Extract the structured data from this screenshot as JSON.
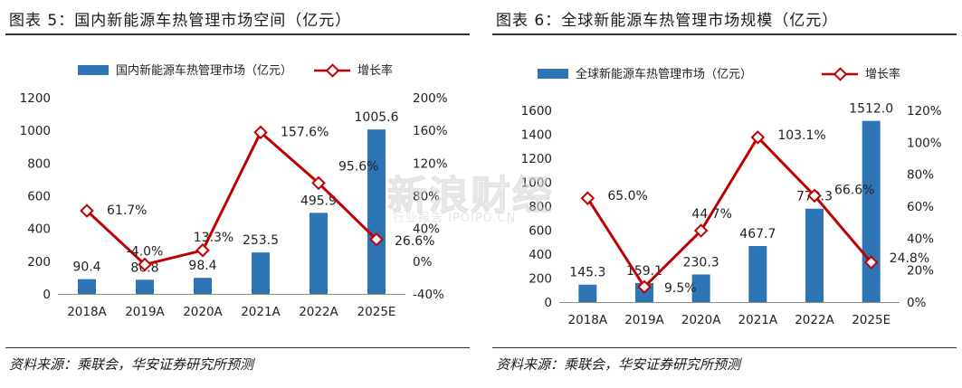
{
  "figures": [
    {
      "title": "图表 5：国内新能源车热管理市场空间（亿元）",
      "source": "资料来源：乘联会，华安证券研究所预测"
    },
    {
      "title": "图表 6：全球新能源车热管理市场规模（亿元）",
      "source": "资料来源：乘联会，华安证券研究所预测"
    }
  ],
  "watermark": {
    "text": "新浪财经",
    "subtext": "行业报告 IPOIPO.CN"
  },
  "colors": {
    "bar": "#2e75b6",
    "line": "#c00000",
    "marker_fill": "#ffffff",
    "axis": "#8c8c8c"
  },
  "chart_data": [
    {
      "type": "bar",
      "title": "",
      "categories": [
        "2018A",
        "2019A",
        "2020A",
        "2021A",
        "2022A",
        "2025E"
      ],
      "series": [
        {
          "name": "国内新能源车热管理市场（亿元）",
          "axis": "left",
          "type": "bar",
          "values": [
            90.4,
            86.8,
            98.4,
            253.5,
            495.9,
            1005.6
          ],
          "labels": [
            "90.4",
            "86.8",
            "98.4",
            "253.5",
            "495.9",
            "1005.6"
          ]
        },
        {
          "name": "增长率",
          "axis": "right",
          "type": "line",
          "values": [
            61.7,
            -4.0,
            13.3,
            157.6,
            95.6,
            26.6
          ],
          "labels": [
            "61.7%",
            "-4.0%",
            "13.3%",
            "157.6%",
            "95.6%",
            "26.6%"
          ]
        }
      ],
      "y_left": {
        "min": 0,
        "max": 1200,
        "ticks": [
          0,
          200,
          400,
          600,
          800,
          1000,
          1200
        ],
        "tick_labels": [
          "0",
          "200",
          "400",
          "600",
          "800",
          "1000",
          "1200"
        ]
      },
      "y_right": {
        "min": -40,
        "max": 200,
        "ticks": [
          -40,
          0,
          40,
          80,
          120,
          160,
          200
        ],
        "tick_labels": [
          "-40%",
          "0%",
          "40%",
          "80%",
          "120%",
          "160%",
          "200%"
        ]
      },
      "legend": "top",
      "grid": false
    },
    {
      "type": "bar",
      "title": "",
      "categories": [
        "2018A",
        "2019A",
        "2020A",
        "2021A",
        "2022A",
        "2025E"
      ],
      "series": [
        {
          "name": "全球新能源车热管理市场（亿元）",
          "axis": "left",
          "type": "bar",
          "values": [
            145.3,
            159.1,
            230.3,
            467.7,
            779.3,
            1512.0
          ],
          "labels": [
            "145.3",
            "159.1",
            "230.3",
            "467.7",
            "779.3",
            "1512.0"
          ]
        },
        {
          "name": "增长率",
          "axis": "right",
          "type": "line",
          "values": [
            65.0,
            9.5,
            44.7,
            103.1,
            66.6,
            24.8
          ],
          "labels": [
            "65.0%",
            "9.5%",
            "44.7%",
            "103.1%",
            "66.6%",
            "24.8%"
          ]
        }
      ],
      "y_left": {
        "min": 0,
        "max": 1600,
        "ticks": [
          0,
          200,
          400,
          600,
          800,
          1000,
          1200,
          1400,
          1600
        ],
        "tick_labels": [
          "0",
          "200",
          "400",
          "600",
          "800",
          "1000",
          "1200",
          "1400",
          "1600"
        ]
      },
      "y_right": {
        "min": 0,
        "max": 120,
        "ticks": [
          0,
          20,
          40,
          60,
          80,
          100,
          120
        ],
        "tick_labels": [
          "0%",
          "20%",
          "40%",
          "60%",
          "80%",
          "100%",
          "120%"
        ]
      },
      "legend": "top",
      "grid": false
    }
  ]
}
